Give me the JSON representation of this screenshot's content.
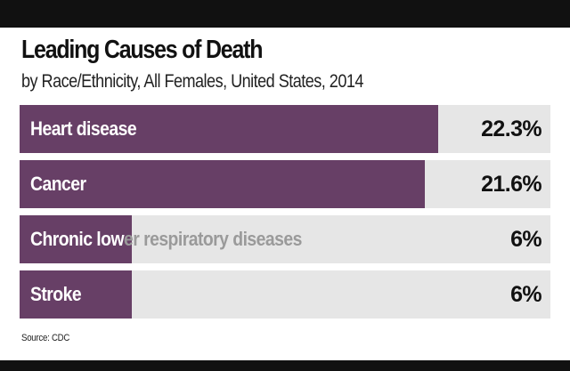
{
  "chart_data": {
    "type": "bar",
    "orientation": "horizontal",
    "title": "Leading Causes of Death",
    "subtitle": "by Race/Ethnicity, All Females, United States, 2014",
    "categories": [
      "Heart disease",
      "Cancer",
      "Chronic lower respiratory diseases",
      "Stroke"
    ],
    "values": [
      22.3,
      21.6,
      6,
      6
    ],
    "value_labels": [
      "22.3%",
      "21.6%",
      "6%",
      "6%"
    ],
    "unit": "%",
    "xlim": [
      0,
      28.3
    ],
    "source": "Source: CDC"
  },
  "colors": {
    "bar_fill": "#673f66",
    "bar_track": "#e6e6e6",
    "frame": "#111111"
  }
}
